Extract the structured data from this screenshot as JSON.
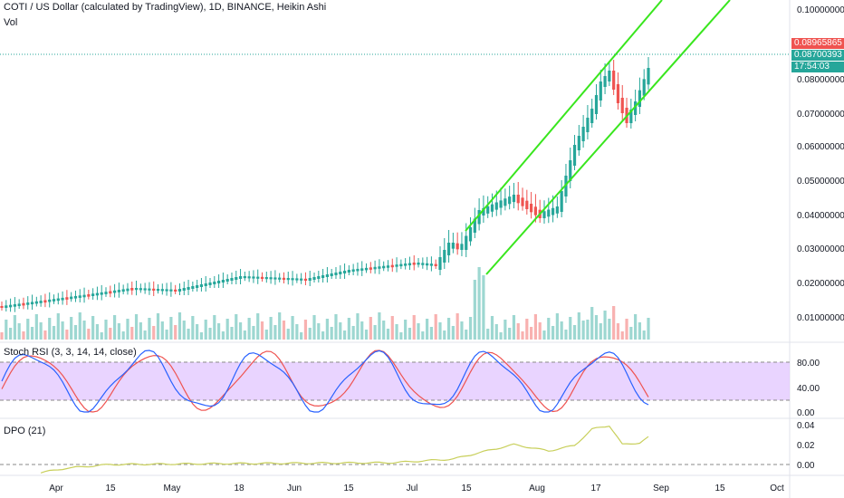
{
  "header": {
    "title": "COTI / US Dollar (calculated by TradingView), 1D, BINANCE, Heikin Ashi",
    "vol_label": "Vol"
  },
  "price_axis": {
    "ticks": [
      "0.10000000",
      "0.08000000",
      "0.07000000",
      "0.06000000",
      "0.05000000",
      "0.04000000",
      "0.03000000",
      "0.02000000",
      "0.01000000"
    ],
    "tag_high": "0.08965865",
    "tag_last": "0.08700393",
    "tag_countdown": "17:54:03"
  },
  "stoch_pane": {
    "title": "Stoch RSI (3, 3, 14, 14, close)",
    "ticks": [
      "80.00",
      "40.00",
      "0.00"
    ]
  },
  "dpo_pane": {
    "title": "DPO (21)",
    "ticks": [
      "0.04",
      "0.02",
      "0.00"
    ]
  },
  "time_axis": {
    "labels": [
      "Apr",
      "15",
      "May",
      "18",
      "Jun",
      "15",
      "Jul",
      "15",
      "Aug",
      "17",
      "Sep",
      "15",
      "Oct"
    ]
  },
  "colors": {
    "up": "#26a69a",
    "down": "#ef5350",
    "channel": "#39e61e",
    "stoch_k": "#2962ff",
    "stoch_d": "#ef5350",
    "stoch_band": "#e1c6ff",
    "dpo_line": "#c8cf5a"
  },
  "chart_data": {
    "type": "candlestick",
    "price_levels": [
      0.1,
      0.08,
      0.07,
      0.06,
      0.05,
      0.04,
      0.03,
      0.02,
      0.01
    ],
    "last_price": 0.08700393,
    "high_price": 0.08965865,
    "stoch_levels": [
      80,
      40,
      0
    ],
    "dpo_levels": [
      0.04,
      0.02,
      0.0
    ]
  }
}
